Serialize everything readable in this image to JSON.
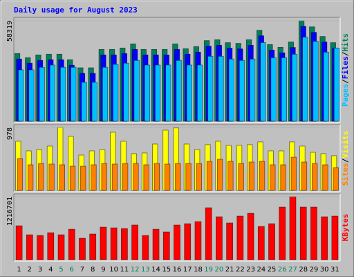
{
  "chart_data": [
    {
      "type": "bar",
      "title": "Daily usage for August 2023",
      "title_color": "#0000ff",
      "legend_separator": "/",
      "ylim": [
        0,
        58319
      ],
      "yticks": [
        58319
      ],
      "series": [
        {
          "name": "Hits",
          "color": "#00805c",
          "values": [
            39300,
            36900,
            38500,
            38900,
            38900,
            35700,
            31000,
            31000,
            41700,
            41700,
            42500,
            44900,
            41700,
            41700,
            41700,
            44900,
            42100,
            43300,
            46800,
            47300,
            45600,
            45200,
            47300,
            52800,
            44500,
            42900,
            46000,
            58319,
            54800,
            49200,
            45600
          ]
        },
        {
          "name": "Files",
          "color": "#0000ff",
          "values": [
            36100,
            33700,
            35300,
            35700,
            35700,
            32500,
            27800,
            27800,
            38500,
            38500,
            39300,
            41700,
            38500,
            38500,
            38500,
            41700,
            38900,
            40100,
            43600,
            44100,
            42400,
            42000,
            44100,
            49600,
            41300,
            39700,
            42800,
            55100,
            51600,
            46000,
            42400
          ]
        },
        {
          "name": "Pages",
          "color": "#00c0ff",
          "values": [
            29800,
            29800,
            31300,
            32600,
            31300,
            31300,
            22600,
            22600,
            31300,
            33000,
            33700,
            35300,
            32600,
            32600,
            32600,
            35300,
            32600,
            32600,
            37700,
            37700,
            36100,
            35300,
            36100,
            45700,
            36900,
            36900,
            38900,
            48800,
            46400,
            40100,
            42500
          ]
        }
      ]
    },
    {
      "type": "bar",
      "legend_separator": "/",
      "ylim": [
        0,
        978
      ],
      "yticks": [
        978
      ],
      "series": [
        {
          "name": "Visits",
          "color": "#ffff00",
          "values": [
            763,
            613,
            634,
            688,
            978,
            839,
            548,
            613,
            634,
            903,
            763,
            570,
            581,
            720,
            935,
            970,
            720,
            634,
            710,
            763,
            699,
            699,
            710,
            753,
            613,
            613,
            753,
            688,
            591,
            570,
            538
          ]
        },
        {
          "name": "Sites",
          "color": "#ff8000",
          "values": [
            495,
            398,
            419,
            409,
            398,
            376,
            376,
            398,
            419,
            409,
            419,
            419,
            398,
            419,
            409,
            419,
            419,
            419,
            452,
            484,
            452,
            419,
            441,
            452,
            398,
            398,
            516,
            441,
            419,
            398,
            355
          ]
        }
      ]
    },
    {
      "type": "bar",
      "ylim": [
        0,
        1216701
      ],
      "yticks": [
        1216701
      ],
      "categories": [
        "1",
        "2",
        "3",
        "4",
        "5",
        "6",
        "7",
        "8",
        "9",
        "10",
        "11",
        "12",
        "13",
        "14",
        "15",
        "16",
        "17",
        "18",
        "19",
        "20",
        "21",
        "22",
        "23",
        "24",
        "25",
        "26",
        "27",
        "28",
        "29",
        "30",
        "31"
      ],
      "category_colors": [
        "#000000",
        "#000000",
        "#000000",
        "#000000",
        "#00805c",
        "#00805c",
        "#000000",
        "#000000",
        "#000000",
        "#000000",
        "#000000",
        "#00805c",
        "#00805c",
        "#000000",
        "#000000",
        "#000000",
        "#000000",
        "#000000",
        "#00805c",
        "#00805c",
        "#000000",
        "#000000",
        "#000000",
        "#000000",
        "#000000",
        "#00805c",
        "#00805c",
        "#000000",
        "#000000",
        "#000000",
        "#000000"
      ],
      "series": [
        {
          "name": "KBytes",
          "color": "#ff0000",
          "values": [
            655000,
            481000,
            468000,
            521000,
            481000,
            588000,
            414000,
            495000,
            628000,
            615000,
            602000,
            669000,
            468000,
            588000,
            535000,
            669000,
            695000,
            735000,
            1003000,
            829000,
            709000,
            842000,
            896000,
            642000,
            695000,
            1016000,
            1216701,
            1016000,
            1016000,
            829000,
            842000
          ]
        }
      ]
    }
  ]
}
